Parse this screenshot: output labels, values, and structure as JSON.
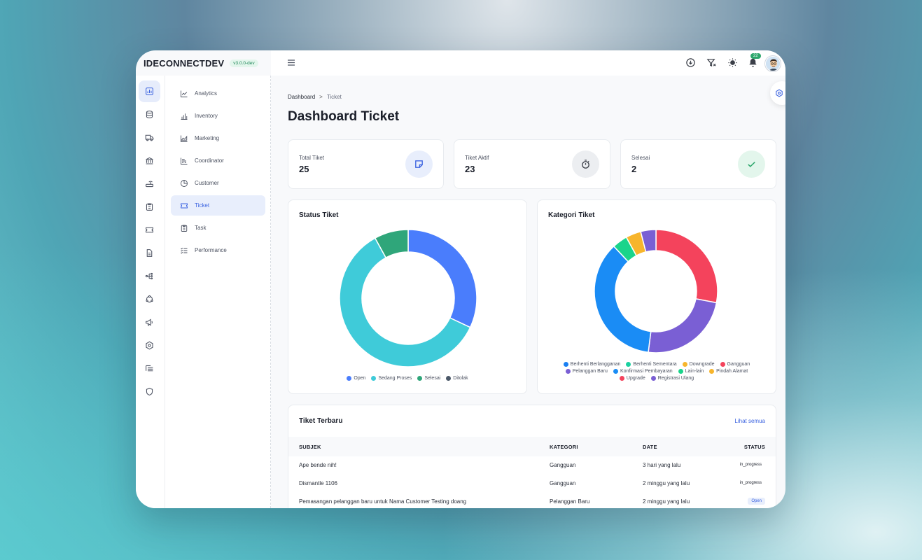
{
  "brand": {
    "name": "IDECONNECTDEV",
    "version": "v3.0.0-dev"
  },
  "rail": [
    {
      "icon": "chart-icon",
      "active": true
    },
    {
      "icon": "database-icon"
    },
    {
      "icon": "truck-icon"
    },
    {
      "icon": "bank-icon"
    },
    {
      "icon": "router-icon"
    },
    {
      "icon": "clipboard-icon"
    },
    {
      "icon": "ticket-icon"
    },
    {
      "icon": "document-icon"
    },
    {
      "icon": "network-icon"
    },
    {
      "icon": "cycle-icon"
    },
    {
      "icon": "megaphone-icon"
    },
    {
      "icon": "settings-icon"
    },
    {
      "icon": "list-icon"
    },
    {
      "icon": "shield-icon"
    }
  ],
  "subnav": [
    {
      "label": "Analytics",
      "icon": "line-chart-icon"
    },
    {
      "label": "Inventory",
      "icon": "bar-chart-icon"
    },
    {
      "label": "Marketing",
      "icon": "area-chart-icon"
    },
    {
      "label": "Coordinator",
      "icon": "stacked-chart-icon"
    },
    {
      "label": "Customer",
      "icon": "pie-chart-icon"
    },
    {
      "label": "Ticket",
      "icon": "ticket-icon",
      "active": true
    },
    {
      "label": "Task",
      "icon": "clipboard-icon"
    },
    {
      "label": "Performance",
      "icon": "checklist-icon"
    }
  ],
  "topbar": {
    "notification_count": "22"
  },
  "breadcrumb": {
    "root": "Dashboard",
    "separator": ">",
    "current": "Ticket"
  },
  "page_title": "Dashboard Ticket",
  "stats": [
    {
      "label": "Total Tiket",
      "value": "25",
      "icon": "note-icon",
      "bg": "#e8eefc",
      "color": "#3a62e0"
    },
    {
      "label": "Tiket Aktif",
      "value": "23",
      "icon": "timer-icon",
      "bg": "#eceef1",
      "color": "#3b3f48"
    },
    {
      "label": "Selesai",
      "value": "2",
      "icon": "check-icon",
      "bg": "#e3f6ec",
      "color": "#2ca66b"
    }
  ],
  "chart_data": [
    {
      "type": "pie",
      "title": "Status Tiket",
      "donut": true,
      "series": [
        {
          "name": "Open",
          "value": 8,
          "color": "#4a7dfc"
        },
        {
          "name": "Sedang Proses",
          "value": 15,
          "color": "#3fcbd9"
        },
        {
          "name": "Selesai",
          "value": 2,
          "color": "#2fa67a"
        },
        {
          "name": "Ditolak",
          "value": 0,
          "color": "#4b5868"
        }
      ]
    },
    {
      "type": "pie",
      "title": "Kategori Tiket",
      "donut": true,
      "series": [
        {
          "name": "Berhenti Berlangganan",
          "value": 0,
          "color": "#1a7ff2"
        },
        {
          "name": "Berhenti Sementara",
          "value": 0,
          "color": "#1ad0a0"
        },
        {
          "name": "Downgrade",
          "value": 0,
          "color": "#f7b52c"
        },
        {
          "name": "Gangguan",
          "value": 7,
          "color": "#f4435c"
        },
        {
          "name": "Pelanggan Baru",
          "value": 6,
          "color": "#7a5fd4"
        },
        {
          "name": "Konfirmasi Pembayaran",
          "value": 9,
          "color": "#1a8cf5"
        },
        {
          "name": "Lain-lain",
          "value": 1,
          "color": "#1ad48b"
        },
        {
          "name": "Pindah Alamat",
          "value": 1,
          "color": "#f7b52c"
        },
        {
          "name": "Upgrade",
          "value": 0,
          "color": "#f4435c"
        },
        {
          "name": "Registrasi Ulang",
          "value": 1,
          "color": "#7a5fd4"
        }
      ]
    }
  ],
  "table": {
    "title": "Tiket Terbaru",
    "see_all": "Lihat semua",
    "columns": [
      "SUBJEK",
      "KATEGORI",
      "DATE",
      "STATUS"
    ],
    "rows": [
      {
        "subject": "Ape bende nih!",
        "category": "Gangguan",
        "date": "3 hari yang lalu",
        "status": "in_progress"
      },
      {
        "subject": "Dismantle 1106",
        "category": "Gangguan",
        "date": "2 minggu yang lalu",
        "status": "in_progress"
      },
      {
        "subject": "Pemasangan pelanggan baru untuk Nama Customer Testing doang",
        "category": "Pelanggan Baru",
        "date": "2 minggu yang lalu",
        "status": "Open"
      }
    ]
  }
}
